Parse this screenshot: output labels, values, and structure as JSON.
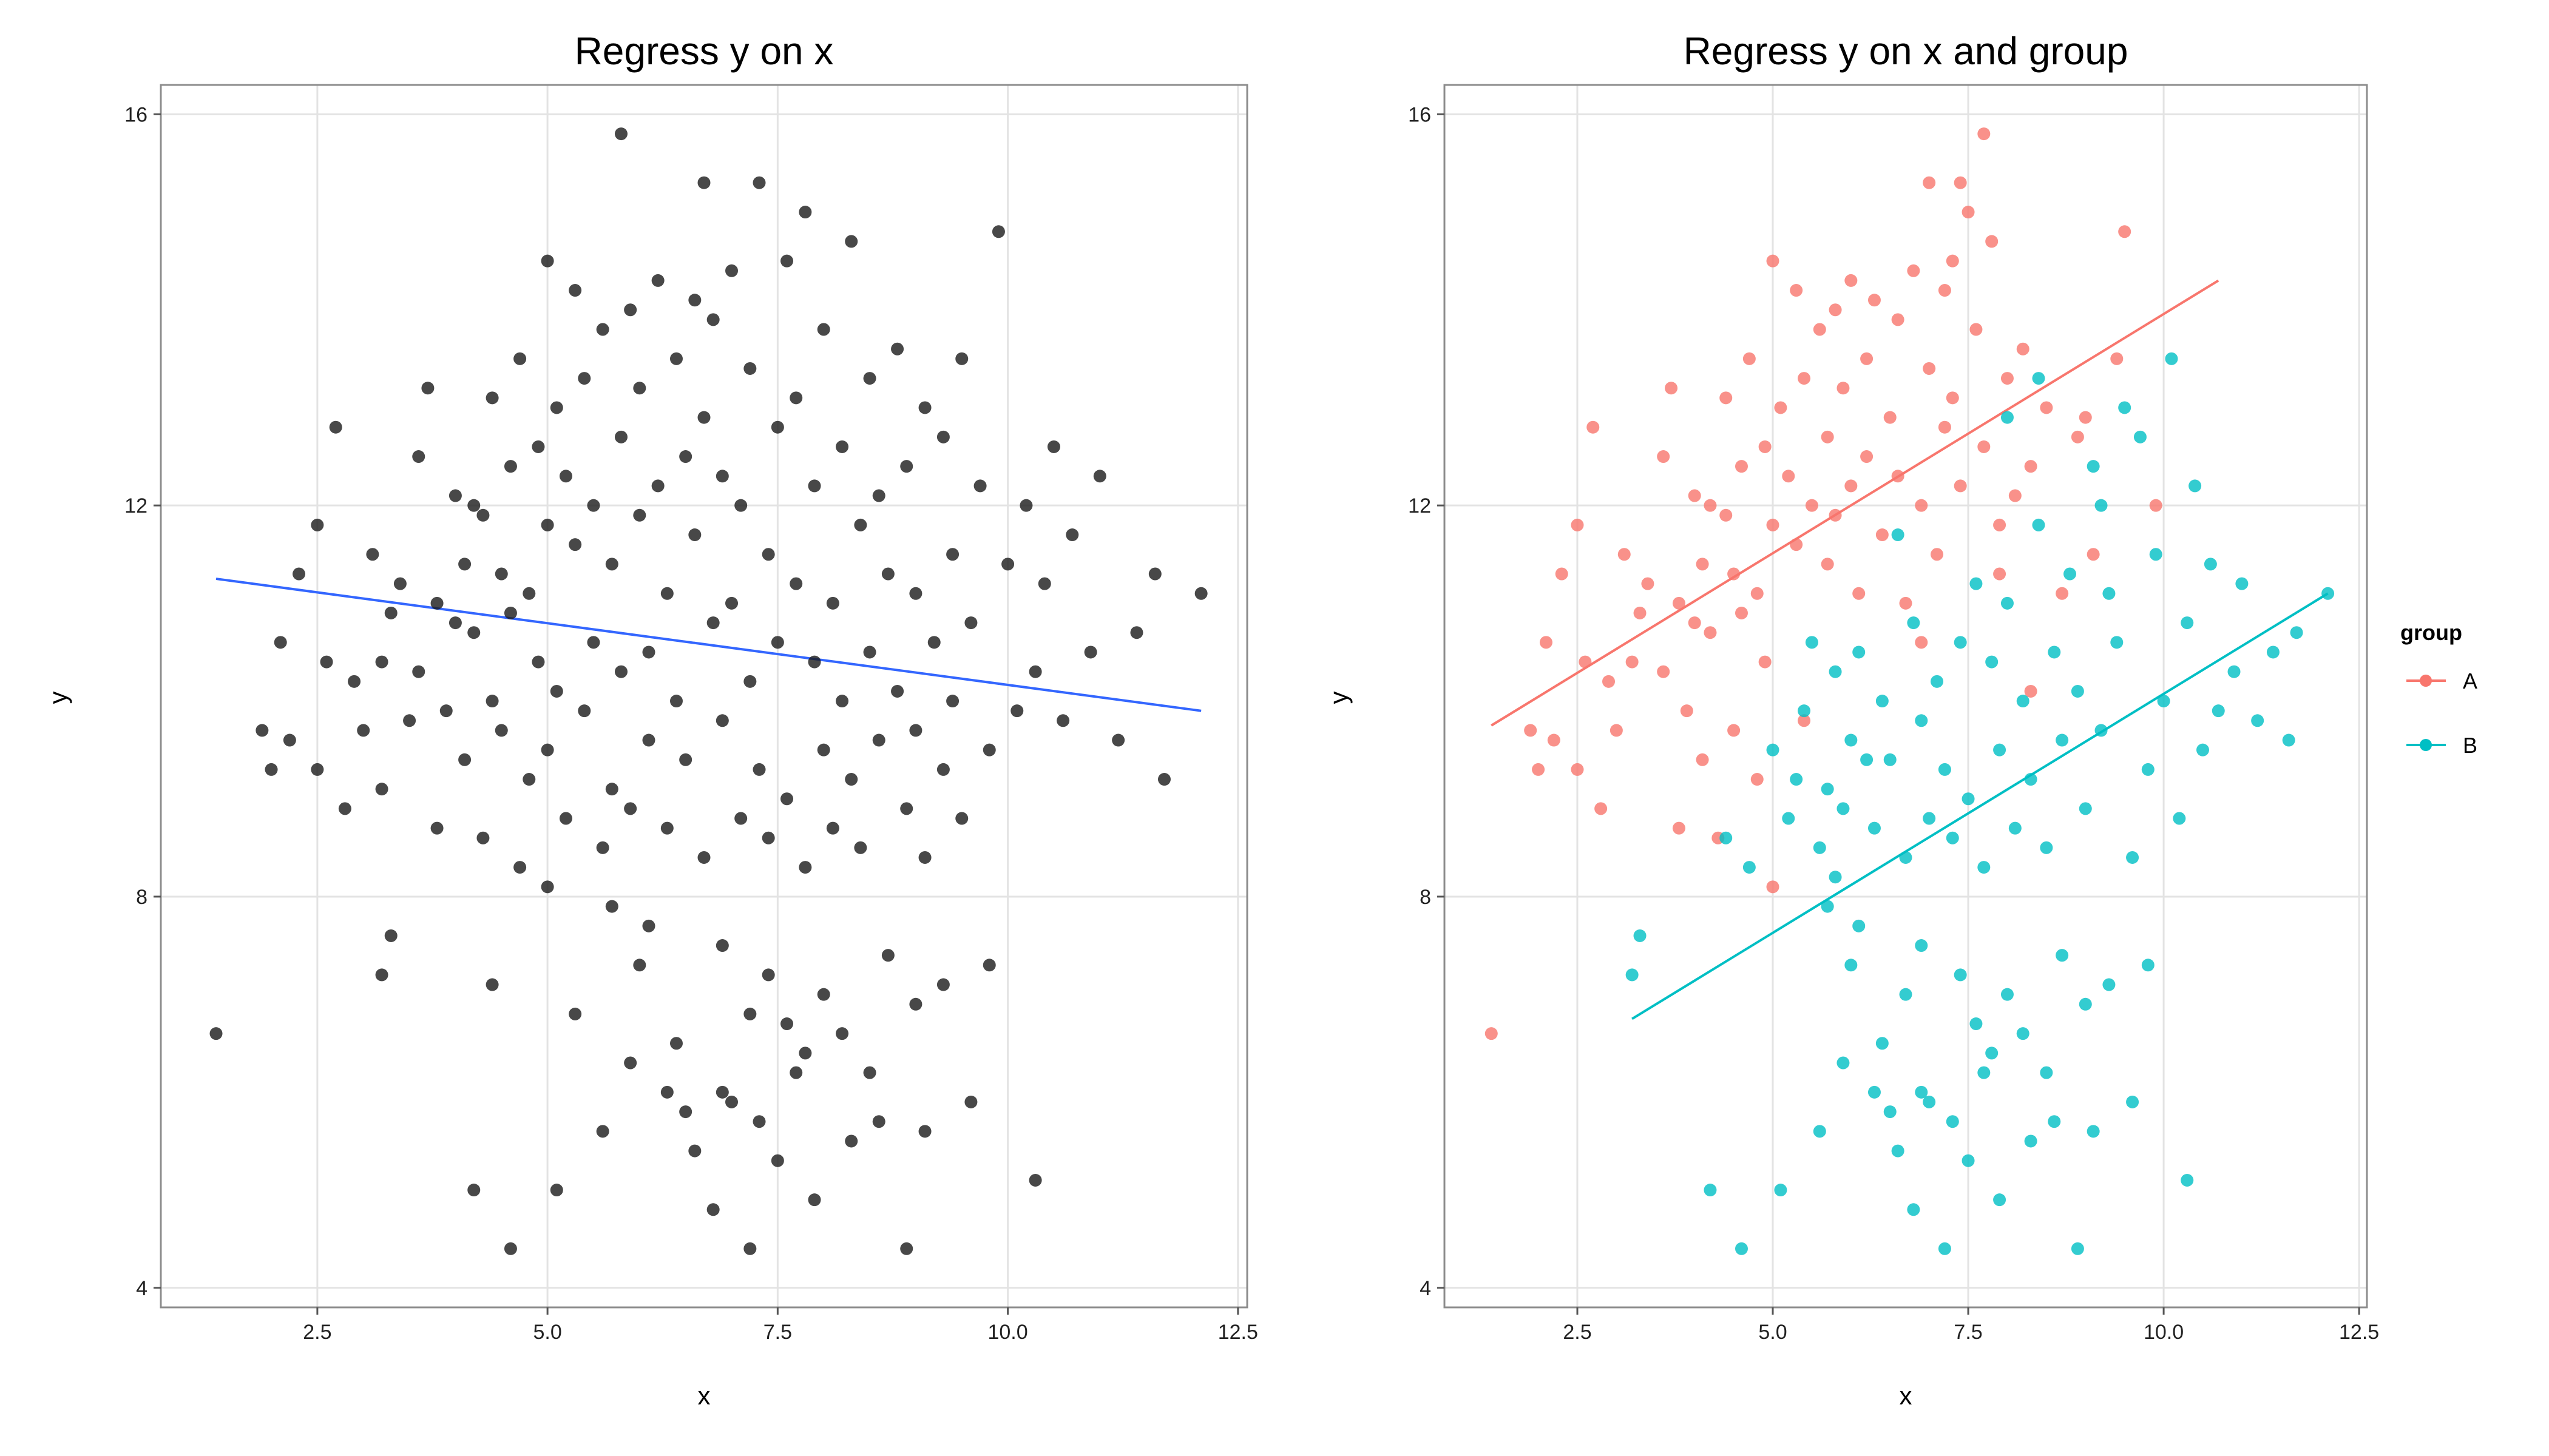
{
  "chart_data": [
    {
      "type": "scatter",
      "title": "Regress y on x",
      "xlabel": "x",
      "ylabel": "y",
      "xlim": [
        0.8,
        12.6
      ],
      "ylim": [
        3.8,
        16.3
      ],
      "xticks": [
        2.5,
        5.0,
        7.5,
        10.0,
        12.5
      ],
      "xtick_labels": [
        "2.5",
        "5.0",
        "7.5",
        "10.0",
        "12.5"
      ],
      "yticks": [
        4,
        8,
        12,
        16
      ],
      "ytick_labels": [
        "4",
        "8",
        "12",
        "16"
      ],
      "grid": true,
      "legend": "none",
      "point_color": "#1a1a1a",
      "fit_lines": [
        {
          "color": "#3366ff",
          "x": [
            1.4,
            12.1
          ],
          "y": [
            11.25,
            9.9
          ]
        }
      ],
      "series": [
        {
          "x": [
            1.4,
            1.9,
            2.0,
            2.1,
            2.2,
            2.3,
            2.5,
            2.5,
            2.6,
            2.7,
            2.8,
            2.9,
            3.0,
            3.1,
            3.2,
            3.2,
            3.3,
            3.4,
            3.5,
            3.6,
            3.6,
            3.7,
            3.8,
            3.8,
            3.9,
            4.0,
            4.0,
            4.1,
            4.1,
            4.2,
            4.2,
            4.3,
            4.3,
            4.4,
            4.4,
            4.5,
            4.5,
            4.6,
            4.6,
            4.7,
            4.7,
            4.8,
            4.8,
            4.9,
            4.9,
            5.0,
            5.0,
            5.0,
            5.1,
            5.1,
            5.2,
            5.2,
            5.3,
            5.3,
            5.4,
            5.4,
            5.5,
            5.5,
            5.6,
            5.6,
            5.7,
            5.7,
            5.8,
            5.8,
            5.9,
            5.9,
            6.0,
            6.0,
            6.1,
            6.1,
            6.2,
            6.2,
            6.3,
            6.3,
            6.4,
            6.4,
            6.5,
            6.5,
            6.6,
            6.6,
            6.7,
            6.7,
            6.8,
            6.8,
            6.9,
            6.9,
            7.0,
            7.0,
            7.1,
            7.1,
            7.2,
            7.2,
            7.3,
            7.3,
            7.4,
            7.4,
            7.5,
            7.5,
            7.6,
            7.6,
            7.7,
            7.7,
            7.8,
            7.8,
            7.9,
            7.9,
            8.0,
            8.0,
            8.1,
            8.1,
            8.2,
            8.2,
            8.3,
            8.3,
            8.4,
            8.4,
            8.5,
            8.5,
            8.6,
            8.6,
            8.7,
            8.8,
            8.8,
            8.9,
            8.9,
            9.0,
            9.0,
            9.1,
            9.1,
            9.2,
            9.3,
            9.3,
            9.4,
            9.4,
            9.5,
            9.5,
            9.6,
            9.7,
            9.8,
            9.9,
            10.0,
            10.1,
            10.2,
            10.3,
            10.4,
            10.5,
            10.6,
            10.7,
            10.9,
            11.0,
            11.2,
            11.4,
            11.6,
            11.7,
            12.1,
            4.2,
            4.6,
            5.1,
            6.8,
            7.2,
            7.9,
            8.9,
            5.6,
            6.5,
            7.5,
            8.3,
            9.1,
            10.3,
            3.3,
            3.2,
            4.4,
            5.9,
            6.3,
            7.7,
            8.6,
            9.6,
            7.2,
            7.6,
            5.0,
            5.7,
            6.1,
            6.9,
            7.4,
            8.0,
            8.7,
            9.3,
            6.4,
            6.9,
            7.8,
            8.2,
            5.3,
            6.0,
            7.0,
            8.5,
            9.0,
            9.8,
            6.6,
            7.3,
            5.8,
            6.7
          ],
          "y": [
            6.6,
            9.7,
            9.3,
            10.6,
            9.6,
            11.3,
            11.8,
            9.3,
            10.4,
            12.8,
            8.9,
            10.2,
            9.7,
            11.5,
            10.4,
            9.1,
            10.9,
            11.2,
            9.8,
            12.5,
            10.3,
            13.2,
            8.7,
            11.0,
            9.9,
            12.1,
            10.8,
            11.4,
            9.4,
            10.7,
            12.0,
            8.6,
            11.9,
            10.0,
            13.1,
            11.3,
            9.7,
            12.4,
            10.9,
            8.3,
            13.5,
            11.1,
            9.2,
            12.6,
            10.4,
            14.5,
            11.8,
            9.5,
            13.0,
            10.1,
            12.3,
            8.8,
            14.2,
            11.6,
            9.9,
            13.3,
            12.0,
            10.6,
            8.5,
            13.8,
            11.4,
            9.1,
            12.7,
            10.3,
            14.0,
            8.9,
            11.9,
            13.2,
            10.5,
            9.6,
            12.2,
            14.3,
            8.7,
            11.1,
            13.5,
            10.0,
            12.5,
            9.4,
            14.1,
            11.7,
            8.4,
            12.9,
            10.8,
            13.9,
            9.8,
            12.3,
            11.0,
            14.4,
            8.8,
            12.0,
            10.2,
            13.4,
            9.3,
            15.3,
            11.5,
            8.6,
            12.8,
            10.6,
            14.5,
            9.0,
            13.1,
            11.2,
            8.3,
            15.0,
            10.4,
            12.2,
            9.5,
            13.8,
            11.0,
            8.7,
            12.6,
            10.0,
            14.7,
            9.2,
            11.8,
            8.5,
            13.3,
            10.5,
            12.1,
            9.6,
            11.3,
            13.6,
            10.1,
            8.9,
            12.4,
            9.7,
            11.1,
            13.0,
            8.4,
            10.6,
            12.7,
            9.3,
            11.5,
            10.0,
            13.5,
            8.8,
            10.8,
            12.2,
            9.5,
            14.8,
            11.4,
            9.9,
            12.0,
            10.3,
            11.2,
            12.6,
            9.8,
            11.7,
            10.5,
            12.3,
            9.6,
            10.7,
            11.3,
            9.2,
            11.1,
            5.0,
            4.4,
            5.0,
            4.8,
            4.4,
            4.9,
            4.4,
            5.6,
            5.8,
            5.3,
            5.5,
            5.6,
            5.1,
            7.6,
            7.2,
            7.1,
            6.3,
            6.0,
            6.2,
            5.7,
            5.9,
            6.8,
            6.7,
            8.1,
            7.9,
            7.7,
            7.5,
            7.2,
            7.0,
            7.4,
            7.1,
            6.5,
            6.0,
            6.4,
            6.6,
            6.8,
            7.3,
            5.9,
            6.2,
            6.9,
            7.3,
            5.4,
            5.7,
            15.8,
            15.3
          ],
          "color": "#1a1a1a"
        }
      ]
    },
    {
      "type": "scatter",
      "title": "Regress y on x and group",
      "xlabel": "x",
      "ylabel": "y",
      "xlim": [
        0.8,
        12.6
      ],
      "ylim": [
        3.8,
        16.3
      ],
      "xticks": [
        2.5,
        5.0,
        7.5,
        10.0,
        12.5
      ],
      "xtick_labels": [
        "2.5",
        "5.0",
        "7.5",
        "10.0",
        "12.5"
      ],
      "yticks": [
        4,
        8,
        12,
        16
      ],
      "ytick_labels": [
        "4",
        "8",
        "12",
        "16"
      ],
      "grid": true,
      "legend": "right",
      "legend_title": "group",
      "fit_lines": [
        {
          "color": "#f8766d",
          "x": [
            1.4,
            10.7
          ],
          "y": [
            9.75,
            14.3
          ]
        },
        {
          "color": "#00bfc4",
          "x": [
            3.2,
            12.1
          ],
          "y": [
            6.75,
            11.1
          ]
        }
      ],
      "series": [
        {
          "name": "A",
          "color": "#f8766d",
          "x": [
            1.4,
            1.9,
            2.0,
            2.1,
            2.2,
            2.3,
            2.5,
            2.5,
            2.6,
            2.7,
            2.8,
            2.9,
            3.0,
            3.1,
            3.2,
            3.3,
            3.4,
            3.6,
            3.6,
            3.7,
            3.8,
            3.8,
            3.9,
            4.0,
            4.0,
            4.1,
            4.1,
            4.2,
            4.2,
            4.3,
            4.4,
            4.4,
            4.5,
            4.5,
            4.6,
            4.6,
            4.7,
            4.8,
            4.8,
            4.9,
            4.9,
            5.0,
            5.0,
            5.1,
            5.2,
            5.3,
            5.3,
            5.4,
            5.5,
            5.6,
            5.7,
            5.7,
            5.8,
            5.8,
            5.9,
            6.0,
            6.0,
            6.1,
            6.2,
            6.2,
            6.3,
            6.4,
            6.5,
            6.6,
            6.6,
            6.7,
            6.8,
            6.9,
            7.0,
            7.0,
            7.1,
            7.2,
            7.3,
            7.3,
            7.4,
            7.5,
            7.6,
            7.7,
            7.8,
            7.9,
            8.0,
            8.1,
            8.2,
            8.3,
            8.5,
            8.7,
            8.9,
            9.1,
            9.4,
            9.5,
            9.9,
            7.7,
            7.4,
            7.2,
            5.0,
            5.4,
            6.9,
            7.9,
            8.3,
            9.0
          ],
          "y": [
            6.6,
            9.7,
            9.3,
            10.6,
            9.6,
            11.3,
            11.8,
            9.3,
            10.4,
            12.8,
            8.9,
            10.2,
            9.7,
            11.5,
            10.4,
            10.9,
            11.2,
            12.5,
            10.3,
            13.2,
            8.7,
            11.0,
            9.9,
            12.1,
            10.8,
            11.4,
            9.4,
            10.7,
            12.0,
            8.6,
            11.9,
            13.1,
            11.3,
            9.7,
            12.4,
            10.9,
            13.5,
            11.1,
            9.2,
            12.6,
            10.4,
            14.5,
            11.8,
            13.0,
            12.3,
            14.2,
            11.6,
            13.3,
            12.0,
            13.8,
            11.4,
            12.7,
            14.0,
            11.9,
            13.2,
            12.2,
            14.3,
            11.1,
            13.5,
            12.5,
            14.1,
            11.7,
            12.9,
            13.9,
            12.3,
            11.0,
            14.4,
            12.0,
            13.4,
            15.3,
            11.5,
            12.8,
            14.5,
            13.1,
            12.2,
            15.0,
            13.8,
            12.6,
            14.7,
            11.8,
            13.3,
            12.1,
            13.6,
            12.4,
            13.0,
            11.1,
            12.7,
            11.5,
            13.5,
            14.8,
            12.0,
            15.8,
            15.3,
            14.2,
            8.1,
            9.8,
            10.6,
            11.3,
            10.1,
            12.9
          ]
        },
        {
          "name": "B",
          "color": "#00bfc4",
          "x": [
            3.3,
            3.2,
            4.2,
            4.4,
            4.6,
            4.7,
            5.0,
            5.1,
            5.2,
            5.3,
            5.4,
            5.5,
            5.6,
            5.7,
            5.8,
            5.9,
            6.0,
            6.1,
            6.2,
            6.3,
            6.4,
            6.5,
            6.6,
            6.7,
            6.8,
            6.9,
            7.0,
            7.1,
            7.2,
            7.3,
            7.4,
            7.5,
            7.6,
            7.7,
            7.8,
            7.9,
            8.0,
            8.1,
            8.2,
            8.3,
            8.4,
            8.5,
            8.6,
            8.7,
            8.8,
            8.9,
            9.0,
            9.1,
            9.2,
            9.3,
            9.4,
            9.5,
            9.6,
            9.7,
            9.8,
            9.9,
            10.0,
            10.1,
            10.2,
            10.3,
            10.4,
            10.5,
            10.6,
            10.7,
            10.9,
            11.0,
            11.2,
            11.4,
            11.6,
            11.7,
            12.1,
            6.8,
            7.2,
            7.9,
            8.9,
            5.6,
            6.5,
            7.5,
            8.3,
            9.1,
            10.3,
            5.9,
            6.3,
            7.7,
            8.6,
            9.6,
            7.6,
            5.7,
            6.1,
            6.9,
            7.4,
            8.0,
            8.7,
            9.3,
            6.4,
            6.9,
            7.8,
            8.2,
            6.0,
            7.0,
            8.5,
            9.0,
            9.8,
            6.6,
            7.3,
            5.8,
            6.7,
            8.0,
            8.4,
            9.2
          ],
          "y": [
            7.6,
            7.2,
            5.0,
            8.6,
            4.4,
            8.3,
            9.5,
            5.0,
            8.8,
            9.2,
            9.9,
            10.6,
            8.5,
            9.1,
            10.3,
            8.9,
            9.6,
            10.5,
            9.4,
            8.7,
            10.0,
            9.4,
            11.7,
            8.4,
            10.8,
            9.8,
            8.8,
            10.2,
            9.3,
            8.6,
            10.6,
            9.0,
            11.2,
            8.3,
            10.4,
            9.5,
            11.0,
            8.7,
            10.0,
            9.2,
            11.8,
            8.5,
            10.5,
            9.6,
            11.3,
            10.1,
            8.9,
            12.4,
            9.7,
            11.1,
            10.6,
            13.0,
            8.4,
            12.7,
            9.3,
            11.5,
            10.0,
            13.5,
            8.8,
            10.8,
            12.2,
            9.5,
            11.4,
            9.9,
            10.3,
            11.2,
            9.8,
            10.5,
            9.6,
            10.7,
            11.1,
            4.8,
            4.4,
            4.9,
            4.4,
            5.6,
            5.8,
            5.3,
            5.5,
            5.6,
            5.1,
            6.3,
            6.0,
            6.2,
            5.7,
            5.9,
            6.7,
            7.9,
            7.7,
            7.5,
            7.2,
            7.0,
            7.4,
            7.1,
            6.5,
            6.0,
            6.4,
            6.6,
            7.3,
            5.9,
            6.2,
            6.9,
            7.3,
            5.4,
            5.7,
            8.2,
            7.0,
            12.9,
            13.3,
            12.0
          ]
        }
      ]
    }
  ]
}
